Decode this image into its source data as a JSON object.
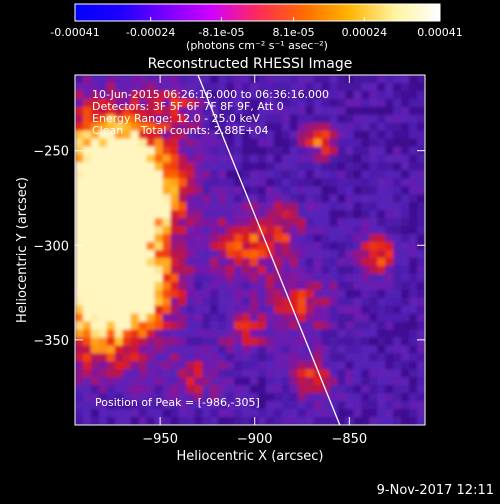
{
  "colorbar": {
    "tick_labels": [
      "-0.00041",
      "-0.00024",
      "-8.1e-05",
      "8.1e-05",
      "0.00024",
      "0.00041"
    ],
    "tick_values": [
      -0.00041,
      -0.00024,
      -8.1e-05,
      8.1e-05,
      0.00024,
      0.00041
    ],
    "range": [
      -0.00041,
      0.00041
    ],
    "unit_label": "(photons cm⁻² s⁻¹ asec⁻²)",
    "colors": [
      "#0000ff",
      "#1e00ff",
      "#7a00ff",
      "#d000ff",
      "#ff2a5a",
      "#ff6a00",
      "#ffb400",
      "#fff3a0",
      "#ffffff"
    ]
  },
  "chart_data": {
    "type": "heatmap",
    "title": "Reconstructed RHESSI Image",
    "xlabel": "Heliocentric X (arcsec)",
    "ylabel": "Heliocentric Y (arcsec)",
    "xlim": [
      -995,
      -810
    ],
    "ylim": [
      -395,
      -210
    ],
    "x_ticks": [
      -950,
      -900,
      -850
    ],
    "x_tick_labels": [
      "−950",
      "−900",
      "−850"
    ],
    "y_ticks": [
      -250,
      -300,
      -350
    ],
    "y_tick_labels": [
      "−250",
      "−300",
      "−350"
    ],
    "annotations": [
      "10-Jun-2015 06:26:16.000 to 06:36:16.000",
      "Detectors: 3F 5F 6F 7F 8F 9F, Att 0",
      "Energy Range: 12.0 - 25.0 keV",
      "Clean     Total counts: 2.88E+04"
    ],
    "peak_label": "Position of Peak = [-986,-305]",
    "peak_position": [
      -986,
      -305
    ],
    "limb_line": [
      [
        -930,
        -210
      ],
      [
        -855,
        -395
      ]
    ],
    "grid": false
  },
  "footer": {
    "timestamp": "9-Nov-2017 12:11"
  }
}
